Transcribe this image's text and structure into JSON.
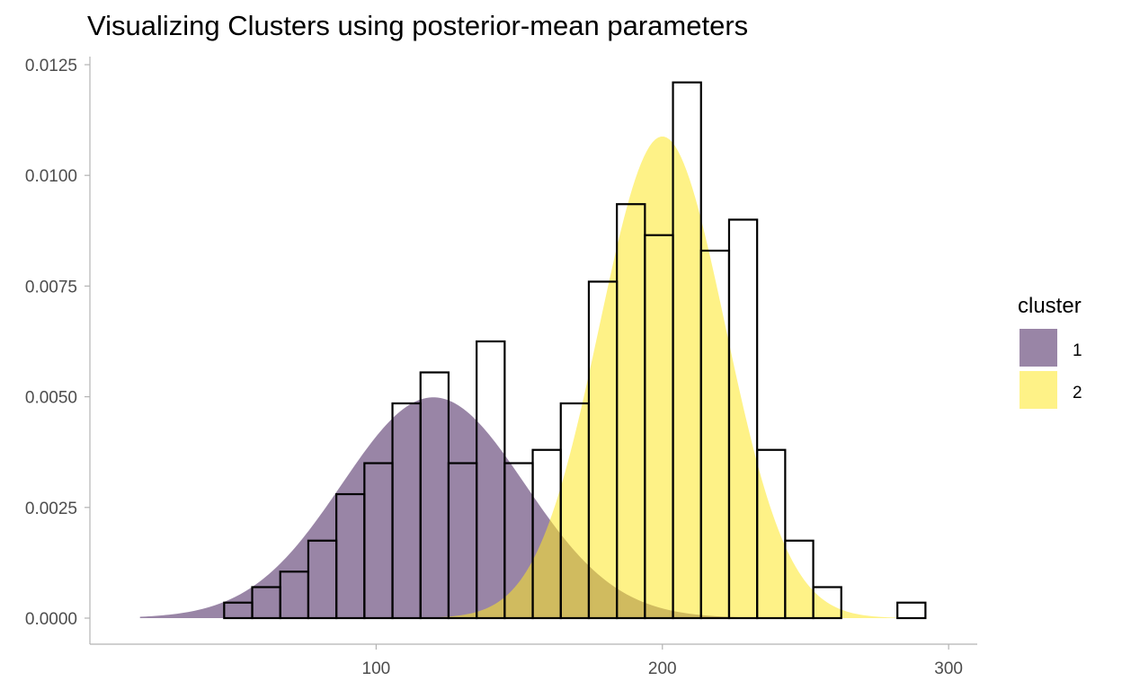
{
  "chart_data": {
    "type": "histogram",
    "title": "Visualizing Clusters using posterior-mean parameters",
    "xlabel": "",
    "ylabel": "",
    "xlim": [
      0,
      310
    ],
    "ylim": [
      0,
      0.0125
    ],
    "x_ticks": [
      100,
      200,
      300
    ],
    "x_tick_labels": [
      "100",
      "200",
      "300"
    ],
    "y_ticks": [
      0.0,
      0.0025,
      0.005,
      0.0075,
      0.01,
      0.0125
    ],
    "y_tick_labels": [
      "0.0000",
      "0.0025",
      "0.0050",
      "0.0075",
      "0.0100",
      "0.0125"
    ],
    "grid": false,
    "histogram": {
      "bin_width": 9.8,
      "bins_start": [
        17.5,
        27.3,
        37.1,
        46.9,
        56.7,
        66.5,
        76.3,
        86.1,
        95.9,
        105.7,
        115.5,
        125.3,
        135.1,
        144.9,
        154.7,
        164.5,
        174.3,
        184.1,
        193.9,
        203.7,
        213.5,
        223.3,
        233.1,
        242.9,
        252.7,
        262.5,
        272.3,
        282.1,
        291.9
      ],
      "density": [
        0,
        0,
        0,
        0.00035,
        0.0007,
        0.00105,
        0.00175,
        0.0028,
        0.0035,
        0.00485,
        0.00555,
        0.0035,
        0.00625,
        0.0035,
        0.0038,
        0.00485,
        0.0076,
        0.00935,
        0.00865,
        0.0121,
        0.0083,
        0.009,
        0.0038,
        0.00175,
        0.0007,
        0,
        0,
        0.00035,
        0
      ]
    },
    "series": [
      {
        "name": "1",
        "type": "area",
        "distribution": "normal",
        "mean": 120,
        "sd": 32,
        "weight": 0.4,
        "color": "#46215c",
        "opacity": 0.55
      },
      {
        "name": "2",
        "type": "area",
        "distribution": "normal",
        "mean": 200,
        "sd": 22,
        "weight": 0.6,
        "color": "#fde725",
        "opacity": 0.55
      }
    ],
    "legend": {
      "title": "cluster",
      "position": "right"
    }
  }
}
